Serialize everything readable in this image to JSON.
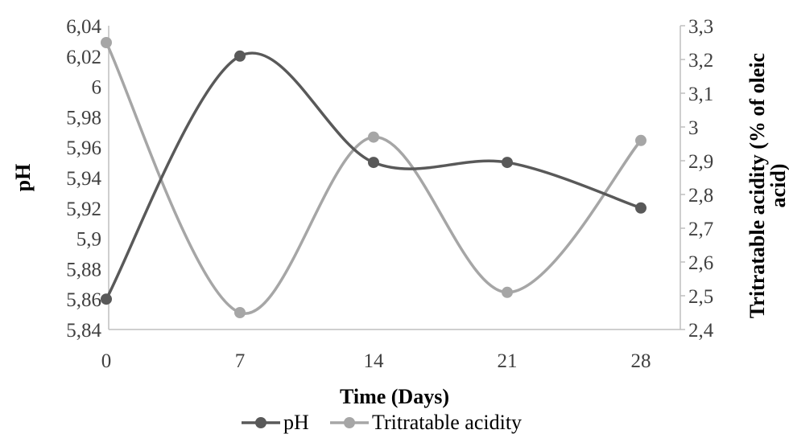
{
  "chart_data": {
    "type": "line",
    "smooth": true,
    "x": [
      0,
      7,
      14,
      21,
      28
    ],
    "xlabel": "Time (Days)",
    "ylabel_left": "pH",
    "ylabel_right": "Tritratable acidity (% of oleic acid)",
    "ylim_left": [
      5.84,
      6.04
    ],
    "ylim_right": [
      2.4,
      3.3
    ],
    "x_ticks": [
      "0",
      "7",
      "14",
      "21",
      "28"
    ],
    "y_ticks_left": [
      "5,84",
      "5,86",
      "5,88",
      "5,9",
      "5,92",
      "5,94",
      "5,96",
      "5,98",
      "6",
      "6,02",
      "6,04"
    ],
    "y_ticks_right": [
      "2,4",
      "2,5",
      "2,6",
      "2,7",
      "2,8",
      "2,9",
      "3",
      "3,1",
      "3,2",
      "3,3"
    ],
    "series": [
      {
        "name": "pH",
        "axis": "left",
        "color": "#595959",
        "values": [
          5.86,
          6.02,
          5.95,
          5.95,
          5.92
        ]
      },
      {
        "name": "Tritratable acidity",
        "axis": "right",
        "color": "#a6a6a6",
        "values": [
          3.25,
          2.45,
          2.97,
          2.51,
          2.96
        ]
      }
    ],
    "legend_position": "bottom",
    "grid": false
  }
}
